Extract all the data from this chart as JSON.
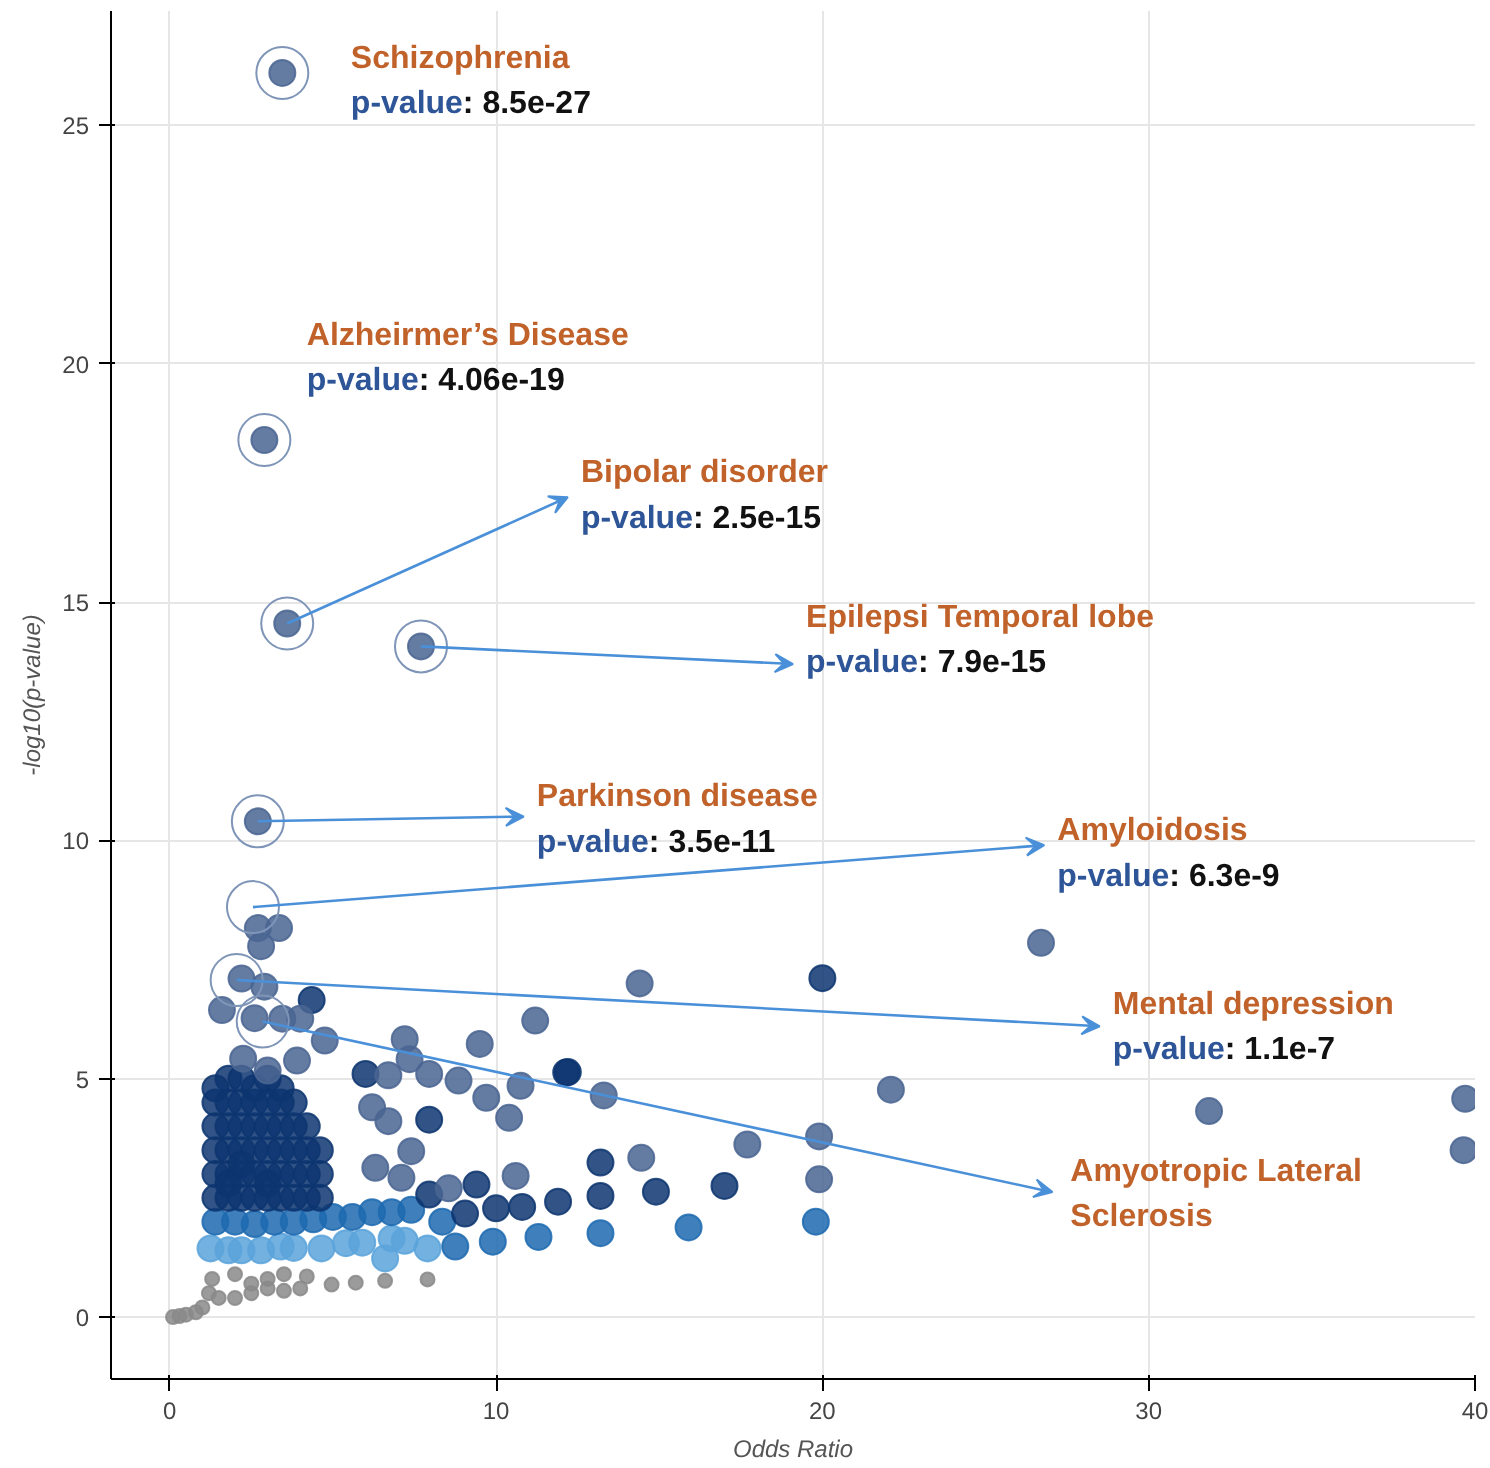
{
  "chart_data": {
    "type": "scatter",
    "xlabel": "Odds Ratio",
    "ylabel": "-log10(p-value)",
    "xlim": [
      -1.8,
      40
    ],
    "ylim": [
      -1.3,
      27.4
    ],
    "xticks": [
      0,
      10,
      20,
      30,
      40
    ],
    "yticks": [
      0,
      5,
      10,
      15,
      20,
      25
    ],
    "grid": true,
    "marker": "circle",
    "series": [
      {
        "color": "#8a8a8a",
        "x": [
          0.1,
          0.3,
          0.5,
          0.8,
          1.0,
          1.2,
          1.3,
          2.0,
          2.5,
          3.0,
          3.5,
          4.0,
          1.5,
          2.0,
          2.5,
          3.0,
          3.5,
          4.2,
          4.96,
          5.7,
          6.6,
          7.9
        ],
        "values": [
          0,
          0.02,
          0.05,
          0.1,
          0.2,
          0.5,
          0.8,
          0.9,
          0.7,
          0.6,
          0.55,
          0.6,
          0.4,
          0.4,
          0.5,
          0.8,
          0.9,
          0.85,
          0.68,
          0.72,
          0.76,
          0.79
        ]
      },
      {
        "color": "#5ba3da",
        "x": [
          1.25,
          1.8,
          2.2,
          2.8,
          3.4,
          3.8,
          4.65,
          5.4,
          5.9,
          6.6,
          6.8,
          7.2,
          7.9
        ],
        "values": [
          1.44,
          1.4,
          1.4,
          1.4,
          1.48,
          1.45,
          1.44,
          1.55,
          1.56,
          1.23,
          1.65,
          1.6,
          1.44
        ]
      },
      {
        "color": "#1d6ab0",
        "x": [
          1.4,
          2.0,
          2.6,
          3.2,
          3.8,
          4.4,
          5.0,
          5.6,
          6.2,
          6.8,
          7.4,
          8.35,
          8.75,
          9.9,
          11.3,
          13.2,
          15.9,
          19.8
        ],
        "values": [
          2.0,
          2.0,
          1.95,
          2.0,
          2.0,
          2.05,
          2.1,
          2.1,
          2.2,
          2.2,
          2.25,
          2.0,
          1.48,
          1.58,
          1.68,
          1.76,
          1.88,
          2.0
        ]
      },
      {
        "color": "#0d3570",
        "x": [
          1.4,
          1.4,
          1.4,
          1.4,
          1.4,
          1.4,
          1.8,
          1.8,
          1.8,
          1.8,
          1.8,
          1.8,
          1.8,
          2.2,
          2.2,
          2.2,
          2.2,
          2.2,
          2.2,
          2.2,
          2.6,
          2.6,
          2.6,
          2.6,
          2.6,
          2.6,
          3.0,
          3.0,
          3.0,
          3.0,
          3.0,
          3.0,
          3.0,
          3.4,
          3.4,
          3.4,
          3.4,
          3.4,
          3.4,
          3.8,
          3.8,
          3.8,
          3.8,
          3.8,
          4.2,
          4.2,
          4.2,
          4.2,
          4.6,
          4.6,
          4.6,
          4.35,
          6.0,
          12.2,
          7.95,
          7.95,
          9.4,
          10.0,
          10.8,
          11.9,
          9.05,
          13.2,
          17.0,
          13.2,
          14.9,
          12.15,
          20.0
        ],
        "values": [
          2.5,
          3.0,
          3.5,
          4.0,
          4.5,
          4.8,
          2.5,
          3.0,
          3.5,
          4.0,
          4.5,
          5.0,
          2.8,
          2.5,
          3.0,
          3.5,
          4.0,
          4.5,
          5.0,
          3.2,
          2.5,
          3.0,
          3.5,
          4.0,
          4.5,
          4.8,
          2.5,
          3.0,
          3.5,
          4.0,
          4.5,
          5.0,
          2.8,
          2.5,
          3.0,
          3.5,
          4.0,
          4.5,
          4.8,
          2.5,
          3.0,
          3.5,
          4.0,
          4.5,
          2.5,
          3.0,
          3.5,
          4.0,
          2.5,
          3.0,
          3.5,
          6.65,
          5.1,
          5.14,
          4.14,
          2.57,
          2.78,
          2.28,
          2.31,
          2.42,
          2.17,
          3.24,
          2.75,
          2.54,
          2.63,
          5.13,
          7.11
        ]
      },
      {
        "color": "#4a6592",
        "x": [
          3.45,
          2.9,
          3.6,
          7.7,
          2.7,
          2.7,
          3.35,
          2.8,
          2.2,
          2.9,
          1.6,
          2.6,
          3.45,
          4.0,
          4.75,
          2.25,
          3.0,
          3.9,
          7.2,
          7.35,
          9.5,
          11.2,
          6.7,
          7.95,
          8.85,
          9.7,
          10.4,
          10.75,
          6.2,
          6.7,
          7.4,
          6.3,
          7.1,
          8.55,
          10.6,
          14.4,
          13.3,
          22.1,
          17.7,
          19.9,
          14.45,
          19.9,
          26.7,
          31.85,
          39.7,
          39.65
        ],
        "values": [
          26.1,
          18.4,
          14.55,
          14.07,
          10.4,
          8.16,
          8.16,
          7.78,
          7.1,
          6.93,
          6.44,
          6.27,
          6.26,
          6.26,
          5.8,
          5.42,
          5.17,
          5.38,
          5.83,
          5.41,
          5.73,
          6.22,
          5.07,
          5.1,
          4.96,
          4.6,
          4.18,
          4.85,
          4.4,
          4.11,
          3.48,
          3.13,
          2.92,
          2.7,
          2.96,
          7.0,
          4.65,
          4.77,
          3.62,
          3.79,
          3.34,
          2.89,
          7.85,
          4.32,
          4.58,
          3.5
        ]
      }
    ],
    "annotations": [
      {
        "text": "Schizophrenia\np-value: 8.5e-27",
        "x": 3.45,
        "y": 26.1
      },
      {
        "text": "Alzheirmer’s Disease\np-value: 4.06e-19",
        "x": 2.9,
        "y": 18.4
      },
      {
        "text": "Bipolar disorder\np-value: 2.5e-15",
        "x": 3.6,
        "y": 14.55
      },
      {
        "text": "Epilepsi Temporal lobe\np-value: 7.9e-15",
        "x": 7.7,
        "y": 14.07
      },
      {
        "text": "Parkinson disease\np-value: 3.5e-11",
        "x": 2.7,
        "y": 10.4
      },
      {
        "text": "Amyloidosis\np-value: 6.3e-9",
        "x": 2.55,
        "y": 8.6
      },
      {
        "text": "Mental depression\np-value: 1.1e-7",
        "x": 2.05,
        "y": 7.07
      },
      {
        "text": "Amyotropic Lateral\nSclerosis",
        "x": 2.85,
        "y": 6.2
      }
    ]
  }
}
